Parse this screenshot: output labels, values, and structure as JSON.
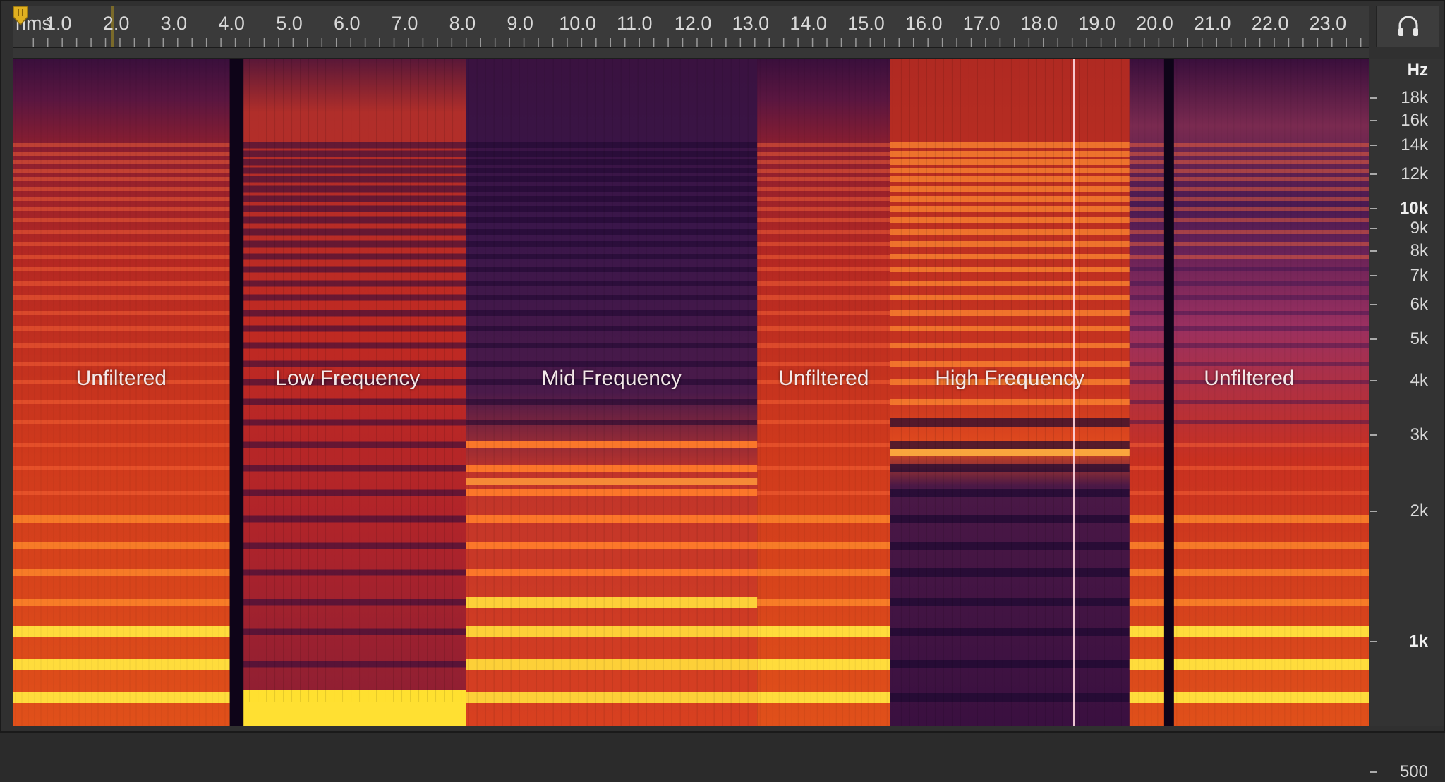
{
  "ruler": {
    "unit_label": "hms",
    "time_labels": [
      "1.0",
      "2.0",
      "3.0",
      "4.0",
      "5.0",
      "6.0",
      "7.0",
      "8.0",
      "9.0",
      "10.0",
      "11.0",
      "12.0",
      "13.0",
      "14.0",
      "15.0",
      "16.0",
      "17.0",
      "18.0",
      "19.0",
      "20.0",
      "21.0",
      "22.0",
      "23.0"
    ]
  },
  "monitor_button": {
    "icon": "headphones-icon"
  },
  "regions": [
    {
      "label": "Unfiltered",
      "start_s": 0.0,
      "end_s": 3.76,
      "kind": "unfiltered"
    },
    {
      "label": "Low Frequency",
      "start_s": 3.76,
      "end_s": 7.85,
      "kind": "low"
    },
    {
      "label": "Mid Frequency",
      "start_s": 7.85,
      "end_s": 12.9,
      "kind": "mid"
    },
    {
      "label": "Unfiltered",
      "start_s": 12.9,
      "end_s": 15.2,
      "kind": "unfiltered"
    },
    {
      "label": "High Frequency",
      "start_s": 15.2,
      "end_s": 19.35,
      "kind": "high"
    },
    {
      "label": "Unfiltered",
      "start_s": 19.35,
      "end_s": 23.6,
      "kind": "unfiltered"
    }
  ],
  "playhead_s": 18.4,
  "freq_axis": {
    "unit_label": "Hz",
    "ticks": [
      {
        "label": "18k",
        "hz": 18000,
        "major": false
      },
      {
        "label": "16k",
        "hz": 16000,
        "major": false
      },
      {
        "label": "14k",
        "hz": 14000,
        "major": false
      },
      {
        "label": "12k",
        "hz": 12000,
        "major": false
      },
      {
        "label": "10k",
        "hz": 10000,
        "major": true
      },
      {
        "label": "9k",
        "hz": 9000,
        "major": false
      },
      {
        "label": "8k",
        "hz": 8000,
        "major": false
      },
      {
        "label": "7k",
        "hz": 7000,
        "major": false
      },
      {
        "label": "6k",
        "hz": 6000,
        "major": false
      },
      {
        "label": "5k",
        "hz": 5000,
        "major": false
      },
      {
        "label": "4k",
        "hz": 4000,
        "major": false
      },
      {
        "label": "3k",
        "hz": 3000,
        "major": false
      },
      {
        "label": "2k",
        "hz": 2000,
        "major": false
      },
      {
        "label": "1k",
        "hz": 1000,
        "major": true
      },
      {
        "label": "500",
        "hz": 500,
        "major": false
      }
    ]
  },
  "colors": {
    "background": "#303030",
    "spec_low": "#2a0a36",
    "spec_mid": "#c8281e",
    "spec_high": "#ffd23a",
    "playhead": "#ffd8e0",
    "marker": "#e0b020"
  }
}
